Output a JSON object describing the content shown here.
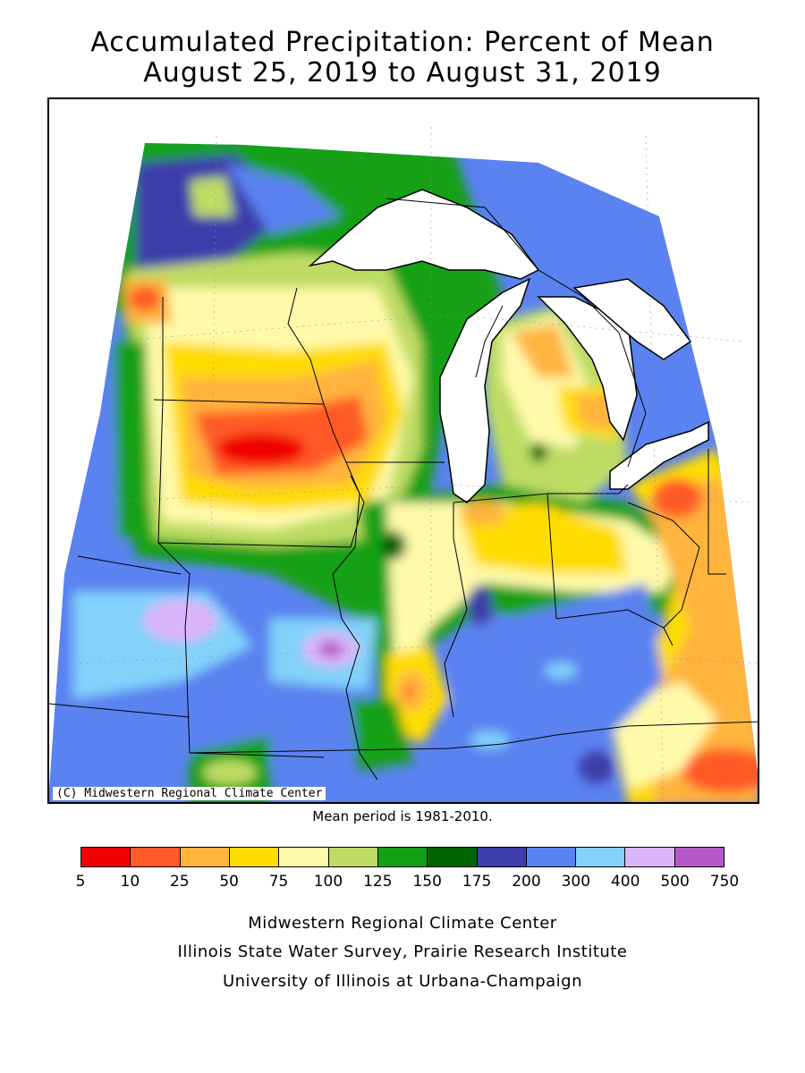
{
  "title_line1": "Accumulated Precipitation: Percent of Mean",
  "title_line2": "August 25, 2019 to August 31, 2019",
  "copyright": "(C) Midwestern Regional Climate Center",
  "mean_period": "Mean period is 1981-2010.",
  "legend": {
    "colors": [
      "#f00000",
      "#ff5a28",
      "#ffb43c",
      "#ffdc00",
      "#fffaaa",
      "#bedc64",
      "#14a014",
      "#006400",
      "#3c3caa",
      "#5a82f0",
      "#82d2fa",
      "#dcb4fa",
      "#b45ac8"
    ],
    "ticks": [
      "5",
      "10",
      "25",
      "50",
      "75",
      "100",
      "125",
      "150",
      "175",
      "200",
      "300",
      "400",
      "500",
      "750"
    ]
  },
  "credits": [
    "Midwestern Regional Climate Center",
    "Illinois State Water Survey, Prairie Research Institute",
    "University of Illinois at Urbana-Champaign"
  ]
}
